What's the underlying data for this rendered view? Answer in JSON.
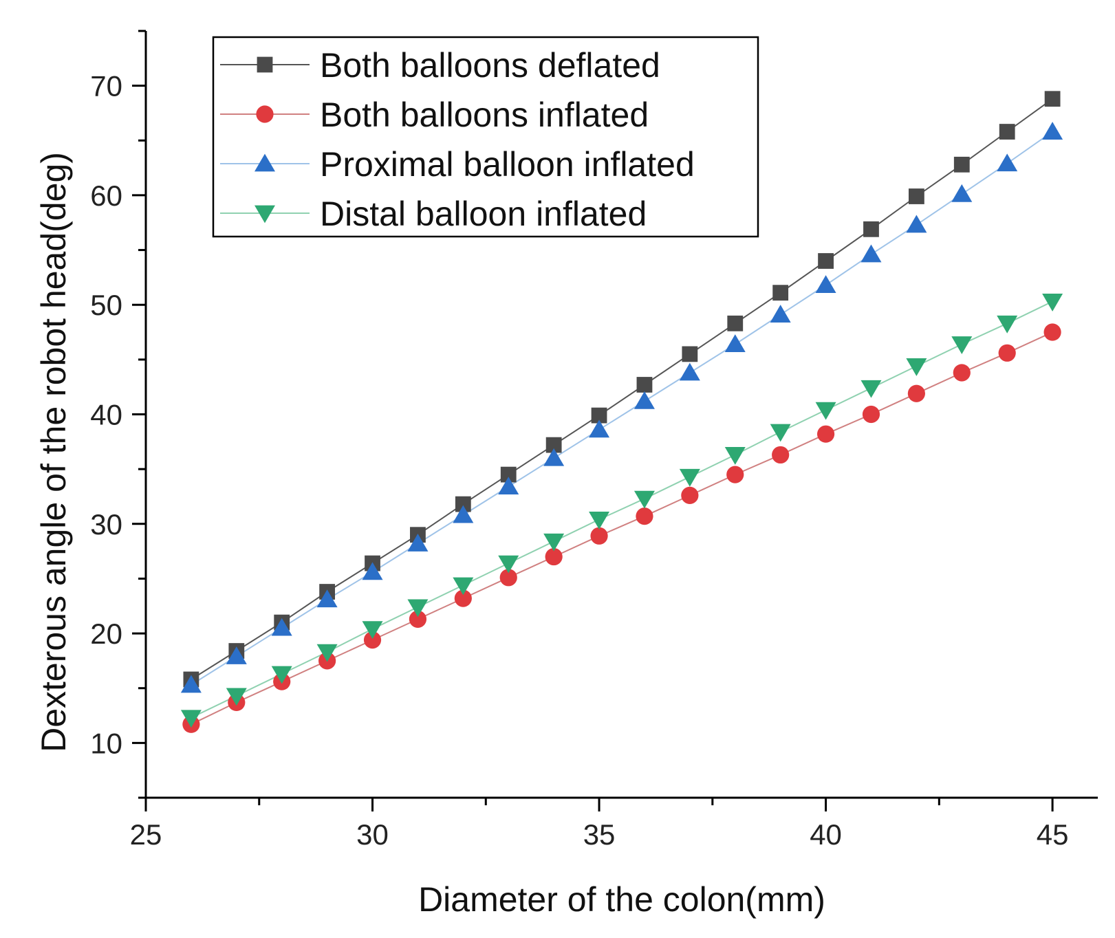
{
  "chart_data": {
    "type": "line",
    "title": "",
    "xlabel": "Diameter of the colon(mm)",
    "ylabel": "Dexterous angle of the robot head(deg)",
    "xlim": [
      25,
      46
    ],
    "ylim": [
      5,
      75
    ],
    "x_ticks": [
      25,
      30,
      35,
      40,
      45
    ],
    "y_ticks": [
      10,
      20,
      30,
      40,
      50,
      60,
      70
    ],
    "x_tick_labels": [
      "25",
      "30",
      "35",
      "40",
      "45"
    ],
    "y_tick_labels": [
      "10",
      "20",
      "30",
      "40",
      "50",
      "60",
      "70"
    ],
    "legend_position": "top-left",
    "x": [
      26,
      27,
      28,
      29,
      30,
      31,
      32,
      33,
      34,
      35,
      36,
      37,
      38,
      39,
      40,
      41,
      42,
      43,
      44,
      45
    ],
    "series": [
      {
        "name": "Both balloons deflated",
        "marker": "square",
        "color": "#4a4a4a",
        "line_color": "#555555",
        "values": [
          15.8,
          18.4,
          21.0,
          23.8,
          26.4,
          29.0,
          31.8,
          34.5,
          37.2,
          39.9,
          42.7,
          45.5,
          48.3,
          51.1,
          54.0,
          56.9,
          59.9,
          62.8,
          65.8,
          68.8
        ]
      },
      {
        "name": "Both balloons inflated",
        "marker": "circle",
        "color": "#e03a3e",
        "line_color": "#d08080",
        "values": [
          11.7,
          13.7,
          15.6,
          17.5,
          19.4,
          21.3,
          23.2,
          25.1,
          27.0,
          28.9,
          30.7,
          32.6,
          34.5,
          36.3,
          38.2,
          40.0,
          41.9,
          43.8,
          45.6,
          47.5
        ]
      },
      {
        "name": "Proximal balloon inflated",
        "marker": "triangle-up",
        "color": "#2b6fc8",
        "line_color": "#9fc3e8",
        "values": [
          15.3,
          17.9,
          20.5,
          23.1,
          25.6,
          28.2,
          30.8,
          33.4,
          36.0,
          38.6,
          41.2,
          43.8,
          46.4,
          49.1,
          51.8,
          54.6,
          57.3,
          60.1,
          62.9,
          65.8
        ]
      },
      {
        "name": "Distal balloon inflated",
        "marker": "triangle-down",
        "color": "#2ea872",
        "line_color": "#8fd1b0",
        "values": [
          12.3,
          14.3,
          16.3,
          18.3,
          20.4,
          22.4,
          24.4,
          26.4,
          28.4,
          30.4,
          32.3,
          34.3,
          36.3,
          38.4,
          40.4,
          42.4,
          44.4,
          46.4,
          48.3,
          50.3
        ]
      }
    ]
  }
}
